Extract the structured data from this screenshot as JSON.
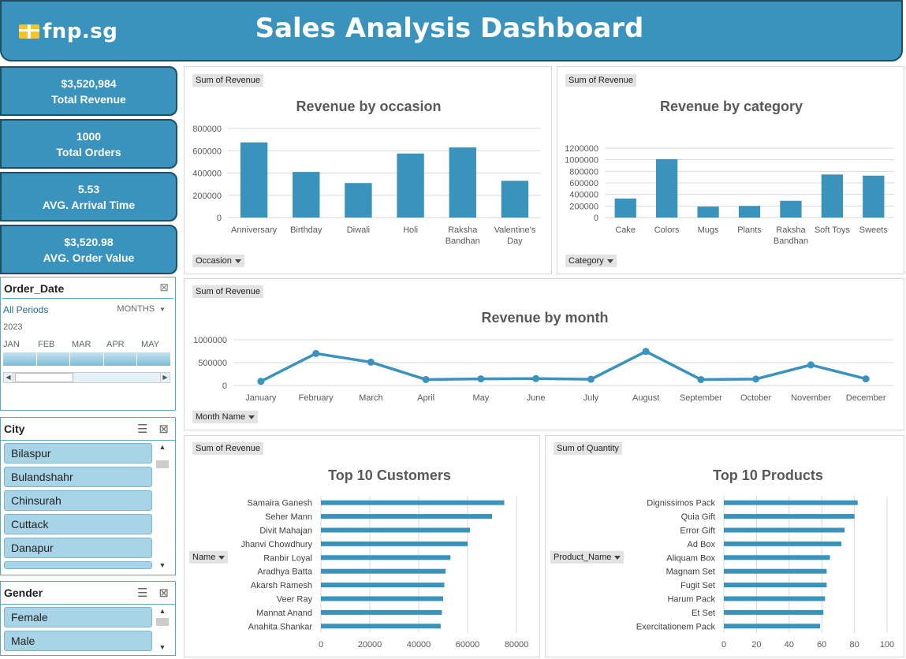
{
  "header": {
    "logo_text": "fnp.sg",
    "title": "Sales Analysis Dashboard"
  },
  "kpis": [
    {
      "value": "$3,520,984",
      "label": "Total Revenue"
    },
    {
      "value": "1000",
      "label": "Total Orders"
    },
    {
      "value": "5.53",
      "label": "AVG. Arrival Time"
    },
    {
      "value": "$3,520.98",
      "label": "AVG. Order Value"
    }
  ],
  "timeline": {
    "title": "Order_Date",
    "periods_label": "All Periods",
    "level_label": "MONTHS",
    "year": "2023",
    "months": [
      "JAN",
      "FEB",
      "MAR",
      "APR",
      "MAY"
    ]
  },
  "city_slicer": {
    "title": "City",
    "items": [
      "Bilaspur",
      "Bulandshahr",
      "Chinsurah",
      "Cuttack",
      "Danapur"
    ]
  },
  "gender_slicer": {
    "title": "Gender",
    "items": [
      "Female",
      "Male"
    ]
  },
  "chart_data": [
    {
      "id": "occasion",
      "type": "bar",
      "tag": "Sum of Revenue",
      "title": "Revenue by occasion",
      "filter": "Occasion",
      "categories": [
        "Anniversary",
        "Birthday",
        "Diwali",
        "Holi",
        "Raksha Bandhan",
        "Valentine's Day"
      ],
      "values": [
        675000,
        410000,
        310000,
        575000,
        630000,
        330000
      ],
      "ylim": [
        0,
        800000
      ],
      "yticks": [
        "0",
        "200000",
        "400000",
        "600000",
        "800000"
      ],
      "color": "#3a93bd"
    },
    {
      "id": "category",
      "type": "bar",
      "tag": "Sum of Revenue",
      "title": "Revenue by category",
      "filter": "Category",
      "categories": [
        "Cake",
        "Colors",
        "Mugs",
        "Plants",
        "Raksha Bandhan",
        "Soft Toys",
        "Sweets"
      ],
      "values": [
        330000,
        1010000,
        190000,
        200000,
        290000,
        745000,
        725000
      ],
      "ylim": [
        0,
        1200000
      ],
      "yticks": [
        "0",
        "200000",
        "400000",
        "600000",
        "800000",
        "1000000",
        "1200000"
      ],
      "color": "#3a93bd"
    },
    {
      "id": "month",
      "type": "line",
      "tag": "Sum of Revenue",
      "title": "Revenue by month",
      "filter": "Month Name",
      "categories": [
        "January",
        "February",
        "March",
        "April",
        "May",
        "June",
        "July",
        "August",
        "September",
        "October",
        "November",
        "December"
      ],
      "values": [
        90000,
        700000,
        510000,
        130000,
        145000,
        150000,
        135000,
        745000,
        130000,
        140000,
        450000,
        145000
      ],
      "ylim": [
        0,
        1000000
      ],
      "yticks": [
        "0",
        "500000",
        "1000000"
      ],
      "color": "#3a93bd"
    },
    {
      "id": "customers",
      "type": "bar",
      "orientation": "horizontal",
      "tag": "Sum of Revenue",
      "title": "Top 10 Customers",
      "filter": "Name",
      "categories": [
        "Samaira Ganesh",
        "Seher Mann",
        "Divit Mahajan",
        "Jhanvi Chowdhury",
        "Ranbir Loyal",
        "Aradhya Batta",
        "Akarsh Ramesh",
        "Veer Ray",
        "Mannat Anand",
        "Anahita Shankar"
      ],
      "values": [
        75000,
        70000,
        61000,
        60000,
        53000,
        51000,
        50500,
        50000,
        49500,
        49000
      ],
      "xlim": [
        0,
        80000
      ],
      "xticks": [
        "0",
        "20000",
        "40000",
        "60000",
        "80000"
      ],
      "color": "#3a93bd"
    },
    {
      "id": "products",
      "type": "bar",
      "orientation": "horizontal",
      "tag": "Sum of Quantity",
      "title": "Top 10 Products",
      "filter": "Product_Name",
      "categories": [
        "Dignissimos Pack",
        "Quia Gift",
        "Error Gift",
        "Ad Box",
        "Aliquam Box",
        "Magnam Set",
        "Fugit Set",
        "Harum Pack",
        "Et Set",
        "Exercitationem Pack"
      ],
      "values": [
        82,
        80,
        74,
        72,
        65,
        63,
        63,
        62,
        61,
        59
      ],
      "xlim": [
        0,
        100
      ],
      "xticks": [
        "0",
        "20",
        "40",
        "60",
        "80",
        "100"
      ],
      "color": "#3a93bd"
    }
  ]
}
